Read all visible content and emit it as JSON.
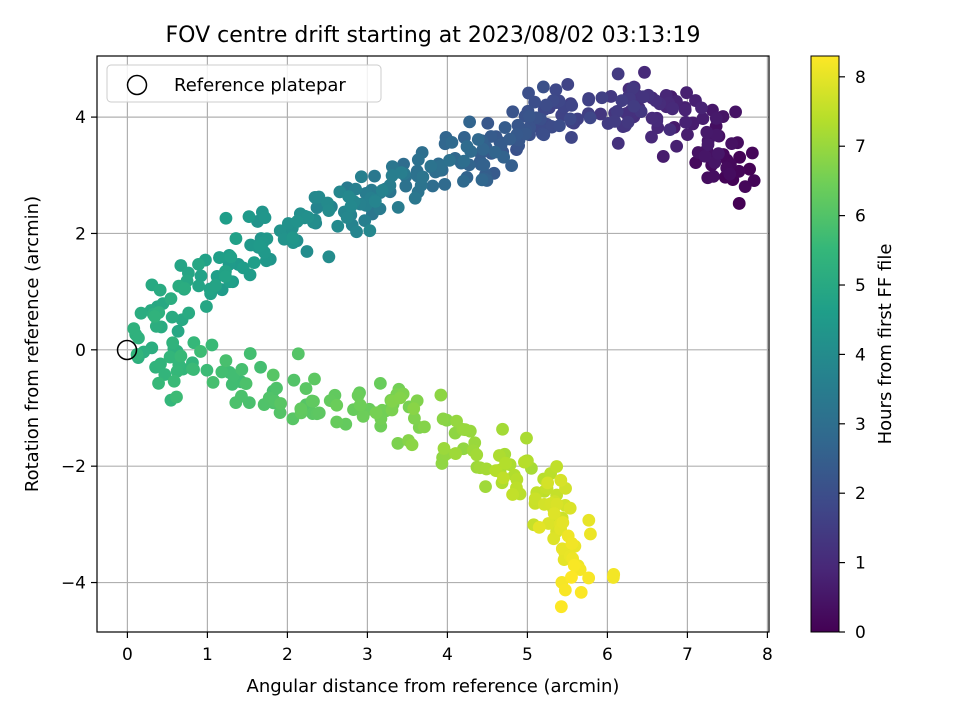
{
  "chart_data": {
    "type": "scatter",
    "title": "FOV centre drift starting at 2023/08/02 03:13:19",
    "xlabel": "Angular distance from reference (arcmin)",
    "ylabel": "Rotation from reference (arcmin)",
    "xlim": [
      -0.38,
      8.02
    ],
    "ylim": [
      -4.85,
      5.05
    ],
    "xticks": [
      0,
      1,
      2,
      3,
      4,
      5,
      6,
      7,
      8
    ],
    "yticks": [
      -4,
      -2,
      0,
      2,
      4
    ],
    "grid": true,
    "legend": {
      "placement": "top-left",
      "entries": [
        "Reference platepar"
      ]
    },
    "reference_point": {
      "x": 0,
      "y": 0
    },
    "colorbar": {
      "label": "Hours from first FF file",
      "colormap": "viridis",
      "range": [
        0,
        8.3
      ],
      "ticks": [
        0,
        1,
        2,
        3,
        4,
        5,
        6,
        7,
        8
      ]
    },
    "colormap_stops": [
      "#440154",
      "#482878",
      "#3e4989",
      "#31688e",
      "#26828e",
      "#1f9e89",
      "#35b779",
      "#6ece58",
      "#b5de2b",
      "#fde725"
    ],
    "path_keypoints": [
      {
        "hours": 0.0,
        "x": 7.6,
        "y": 2.9
      },
      {
        "hours": 0.3,
        "x": 7.4,
        "y": 3.3
      },
      {
        "hours": 0.6,
        "x": 7.1,
        "y": 3.8
      },
      {
        "hours": 1.0,
        "x": 6.6,
        "y": 4.1
      },
      {
        "hours": 1.4,
        "x": 6.1,
        "y": 4.15
      },
      {
        "hours": 1.8,
        "x": 5.5,
        "y": 4.1
      },
      {
        "hours": 2.2,
        "x": 4.9,
        "y": 3.8
      },
      {
        "hours": 2.6,
        "x": 4.4,
        "y": 3.3
      },
      {
        "hours": 3.0,
        "x": 3.9,
        "y": 3.0
      },
      {
        "hours": 3.4,
        "x": 3.2,
        "y": 2.8
      },
      {
        "hours": 3.8,
        "x": 2.7,
        "y": 2.4
      },
      {
        "hours": 4.2,
        "x": 2.0,
        "y": 2.0
      },
      {
        "hours": 4.6,
        "x": 1.3,
        "y": 1.5
      },
      {
        "hours": 5.0,
        "x": 0.6,
        "y": 0.8
      },
      {
        "hours": 5.3,
        "x": 0.35,
        "y": 0.1
      },
      {
        "hours": 5.6,
        "x": 0.8,
        "y": -0.5
      },
      {
        "hours": 5.9,
        "x": 1.6,
        "y": -0.7
      },
      {
        "hours": 6.2,
        "x": 2.4,
        "y": -0.9
      },
      {
        "hours": 6.5,
        "x": 3.1,
        "y": -1.0
      },
      {
        "hours": 6.8,
        "x": 3.8,
        "y": -1.2
      },
      {
        "hours": 7.1,
        "x": 4.4,
        "y": -1.7
      },
      {
        "hours": 7.4,
        "x": 4.9,
        "y": -2.1
      },
      {
        "hours": 7.7,
        "x": 5.3,
        "y": -2.6
      },
      {
        "hours": 8.0,
        "x": 5.6,
        "y": -3.2
      },
      {
        "hours": 8.2,
        "x": 5.65,
        "y": -3.7
      },
      {
        "hours": 8.3,
        "x": 5.55,
        "y": -4.35
      }
    ],
    "point_count": 520
  }
}
